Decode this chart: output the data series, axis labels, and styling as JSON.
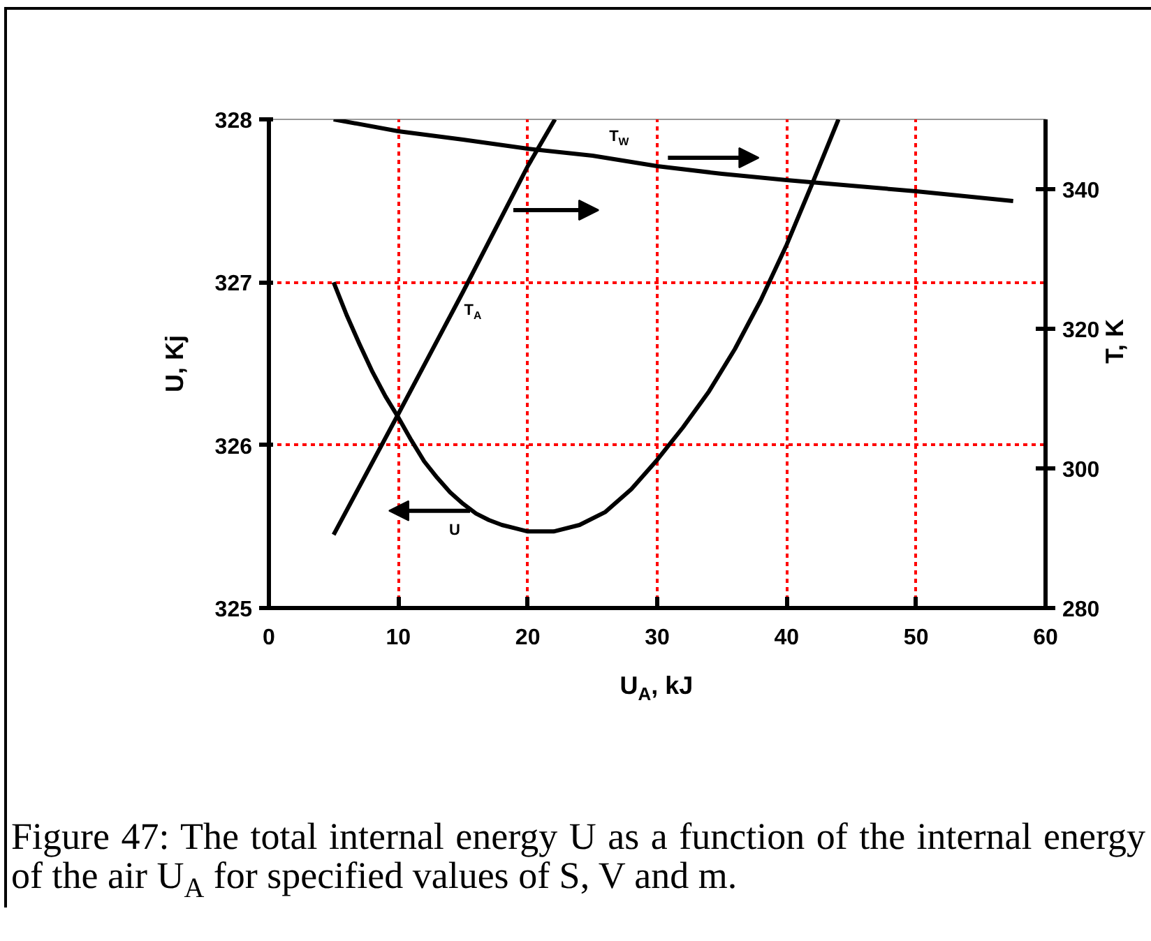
{
  "chart_data": {
    "type": "line",
    "xlabel": "U$_{A}$, kJ",
    "ylabel": "U, Kj",
    "y2label": "T, K",
    "xlim": [
      0,
      60
    ],
    "xticks": [
      0,
      10,
      20,
      30,
      40,
      50,
      60
    ],
    "ylim": [
      325,
      328
    ],
    "yticks": [
      325,
      326,
      327,
      328
    ],
    "y2lim": [
      280,
      350
    ],
    "y2ticks": [
      280,
      300,
      320,
      340
    ],
    "grid": true,
    "series": [
      {
        "name": "U",
        "color": "#000000",
        "x": [
          5,
          6,
          7,
          8,
          9,
          10,
          11,
          12,
          13,
          14,
          15,
          16,
          17,
          18,
          19,
          20,
          22,
          24,
          26,
          28,
          30,
          32,
          34,
          36,
          38,
          40,
          42,
          44
        ],
        "values": [
          327.0,
          326.8,
          326.62,
          326.45,
          326.3,
          326.17,
          326.03,
          325.9,
          325.8,
          325.71,
          325.64,
          325.58,
          325.54,
          325.51,
          325.49,
          325.47,
          325.47,
          325.51,
          325.59,
          325.73,
          325.91,
          326.11,
          326.33,
          326.59,
          326.89,
          327.23,
          327.61,
          328.0
        ]
      },
      {
        "name": "T$_{A}$",
        "color": "#000000",
        "axis": "y2",
        "x": [
          5,
          10,
          15,
          20,
          22.1
        ],
        "values": [
          290.5,
          307.8,
          325.3,
          343.3,
          350
        ]
      },
      {
        "name": "T$_{W}$",
        "color": "#000000",
        "axis": "y2",
        "x": [
          5,
          10,
          15,
          20,
          25,
          30,
          35,
          40,
          45,
          50,
          57.5
        ],
        "values": [
          350,
          348.3,
          347.1,
          345.8,
          344.8,
          343.3,
          342.2,
          341.3,
          340.5,
          339.7,
          338.3
        ]
      }
    ],
    "annotations": [
      "Figure 47: The total internal energy U as a function of the internal energy of the air U$_{A}$ for specified values of S, V and m."
    ]
  }
}
